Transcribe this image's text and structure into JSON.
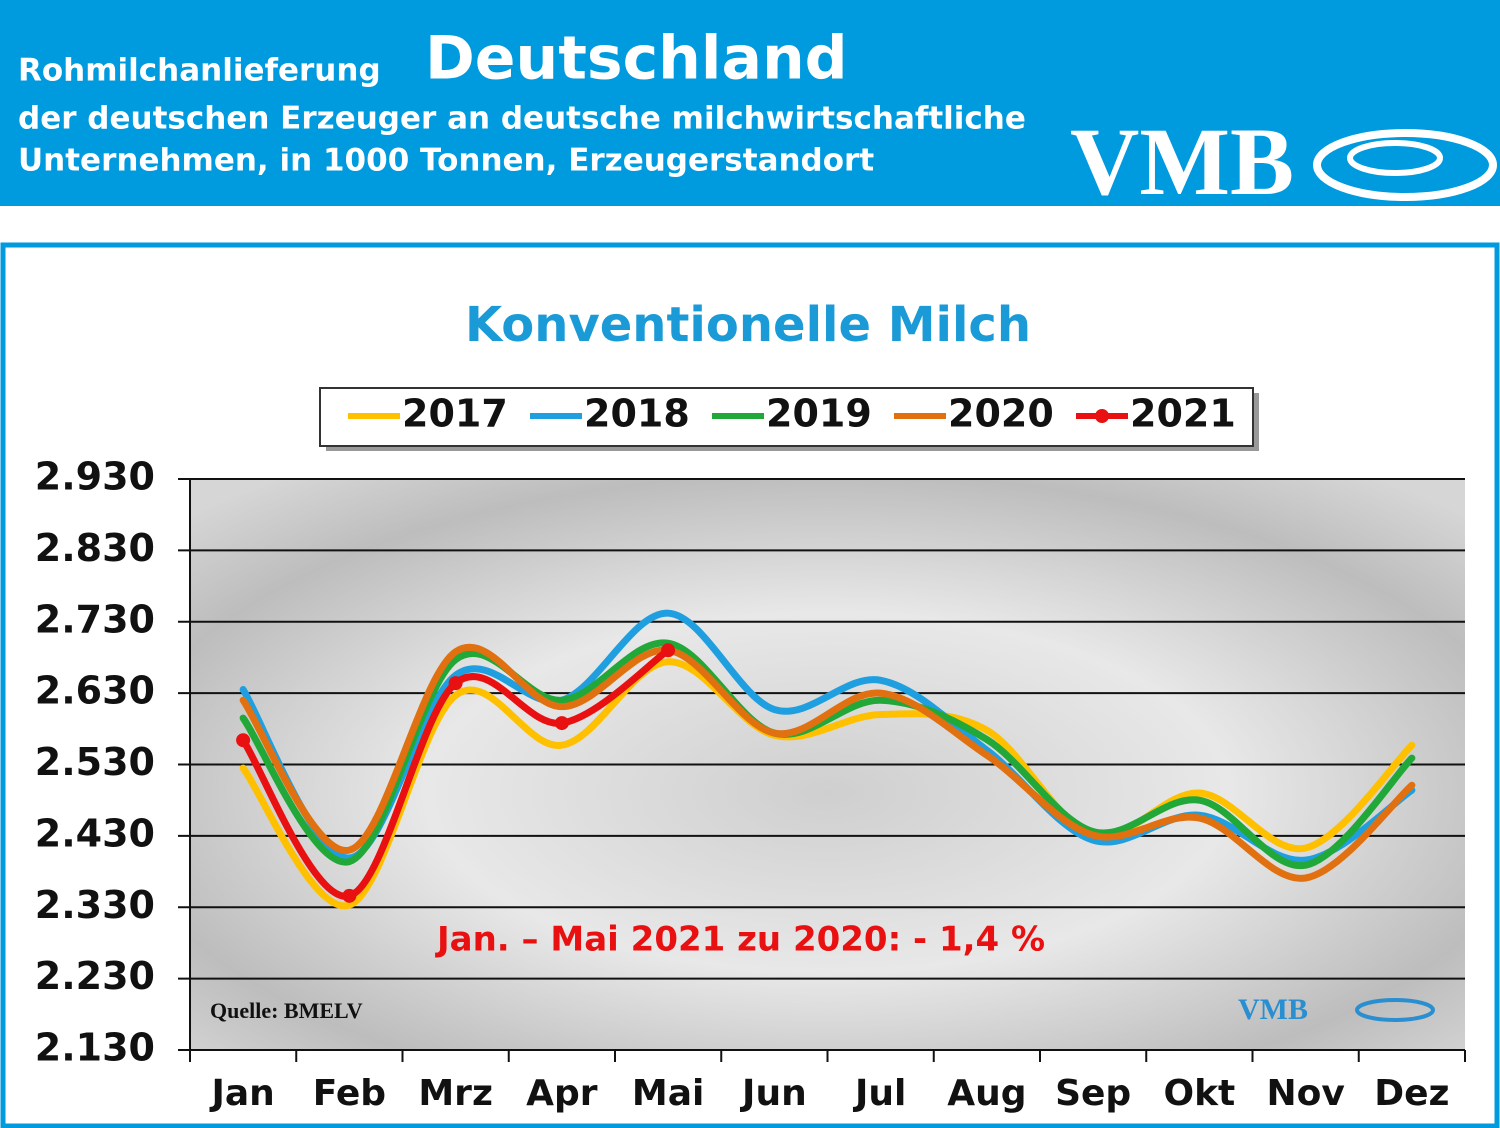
{
  "header": {
    "label": "Rohmilchanlieferung",
    "title": "Deutschland",
    "subtitle_lines": [
      "der deutschen Erzeuger an deutsche milchwirtschaftliche",
      "Unternehmen, in 1000 Tonnen, Erzeugerstandort"
    ],
    "logo": "VMB"
  },
  "chart_data": {
    "type": "line",
    "title": "Konventionelle Milch",
    "categories": [
      "Jan",
      "Feb",
      "Mrz",
      "Apr",
      "Mai",
      "Jun",
      "Jul",
      "Aug",
      "Sep",
      "Okt",
      "Nov",
      "Dez"
    ],
    "series": [
      {
        "name": "2017",
        "color": "#ffc000",
        "values": [
          2525,
          2333,
          2627,
          2557,
          2674,
          2571,
          2600,
          2578,
          2431,
          2490,
          2413,
          2557
        ]
      },
      {
        "name": "2018",
        "color": "#1f9fe0",
        "values": [
          2635,
          2399,
          2655,
          2620,
          2742,
          2607,
          2648,
          2550,
          2424,
          2459,
          2396,
          2494
        ]
      },
      {
        "name": "2019",
        "color": "#22a838",
        "values": [
          2595,
          2394,
          2677,
          2620,
          2700,
          2574,
          2620,
          2565,
          2436,
          2480,
          2389,
          2539
        ]
      },
      {
        "name": "2020",
        "color": "#e07010",
        "values": [
          2620,
          2410,
          2688,
          2611,
          2690,
          2574,
          2630,
          2543,
          2431,
          2455,
          2371,
          2501
        ]
      },
      {
        "name": "2021",
        "color": "#e81010",
        "marker": true,
        "values": [
          2564,
          2346,
          2644,
          2588,
          2690,
          null,
          null,
          null,
          null,
          null,
          null,
          null
        ]
      }
    ],
    "ylim": [
      2130,
      2930
    ],
    "yticks": [
      {
        "value": 2130,
        "label": "2.130"
      },
      {
        "value": 2230,
        "label": "2.230"
      },
      {
        "value": 2330,
        "label": "2.330"
      },
      {
        "value": 2430,
        "label": "2.430"
      },
      {
        "value": 2530,
        "label": "2.530"
      },
      {
        "value": 2630,
        "label": "2.630"
      },
      {
        "value": 2730,
        "label": "2.730"
      },
      {
        "value": 2830,
        "label": "2.830"
      },
      {
        "value": 2930,
        "label": "2.930"
      }
    ],
    "grid": true,
    "legend": "top",
    "annotation": "Jan. – Mai 2021 zu 2020: - 1,4 %",
    "source": "Quelle: BMELV",
    "watermark": "VMB"
  }
}
